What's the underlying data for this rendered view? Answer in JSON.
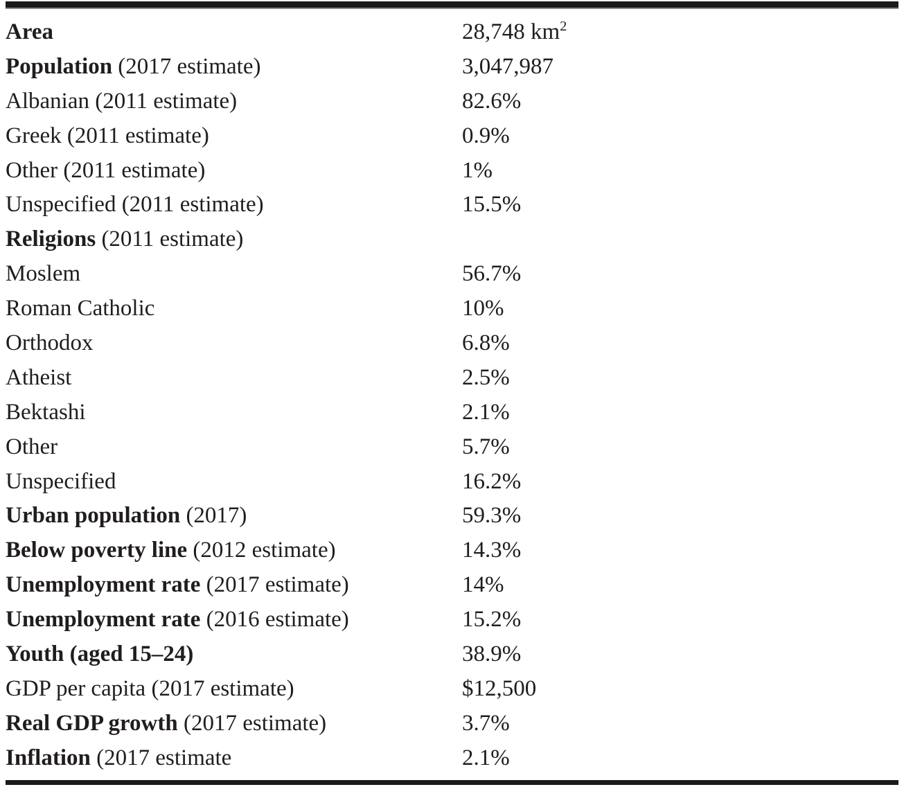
{
  "table": {
    "name": "country-statistics-table",
    "columns": [
      "attribute",
      "value"
    ],
    "rows": [
      {
        "bold": "Area",
        "rest": "",
        "value": "28,748 km²"
      },
      {
        "bold": "Population",
        "rest": " (2017 estimate)",
        "value": "3,047,987"
      },
      {
        "bold": "",
        "rest": "Albanian (2011 estimate)",
        "value": "82.6%"
      },
      {
        "bold": "",
        "rest": "Greek (2011 estimate)",
        "value": "0.9%"
      },
      {
        "bold": "",
        "rest": "Other (2011 estimate)",
        "value": "1%"
      },
      {
        "bold": "",
        "rest": "Unspecified (2011 estimate)",
        "value": "15.5%"
      },
      {
        "bold": "Religions",
        "rest": " (2011 estimate)",
        "value": ""
      },
      {
        "bold": "",
        "rest": "Moslem",
        "value": "56.7%"
      },
      {
        "bold": "",
        "rest": "Roman Catholic",
        "value": "10%"
      },
      {
        "bold": "",
        "rest": "Orthodox",
        "value": "6.8%"
      },
      {
        "bold": "",
        "rest": "Atheist",
        "value": "2.5%"
      },
      {
        "bold": "",
        "rest": "Bektashi",
        "value": "2.1%"
      },
      {
        "bold": "",
        "rest": "Other",
        "value": "5.7%"
      },
      {
        "bold": "",
        "rest": "Unspecified",
        "value": "16.2%"
      },
      {
        "bold": "Urban population",
        "rest": " (2017)",
        "value": "59.3%"
      },
      {
        "bold": "Below poverty line",
        "rest": " (2012 estimate)",
        "value": "14.3%"
      },
      {
        "bold": "Unemployment rate",
        "rest": " (2017 estimate)",
        "value": "14%"
      },
      {
        "bold": "Unemployment rate",
        "rest": " (2016 estimate)",
        "value": "15.2%"
      },
      {
        "bold": "Youth (aged 15–24)",
        "rest": "",
        "value": "38.9%"
      },
      {
        "bold": "",
        "rest": "GDP per capita (2017 estimate)",
        "value": "$12,500"
      },
      {
        "bold": "Real GDP growth",
        "rest": " (2017 estimate)",
        "value": "3.7%"
      },
      {
        "bold": "Inflation",
        "rest": " (2017 estimate",
        "value": "2.1%"
      }
    ],
    "text_color": "#211d1d",
    "rule_color": "#1d1a1a"
  }
}
